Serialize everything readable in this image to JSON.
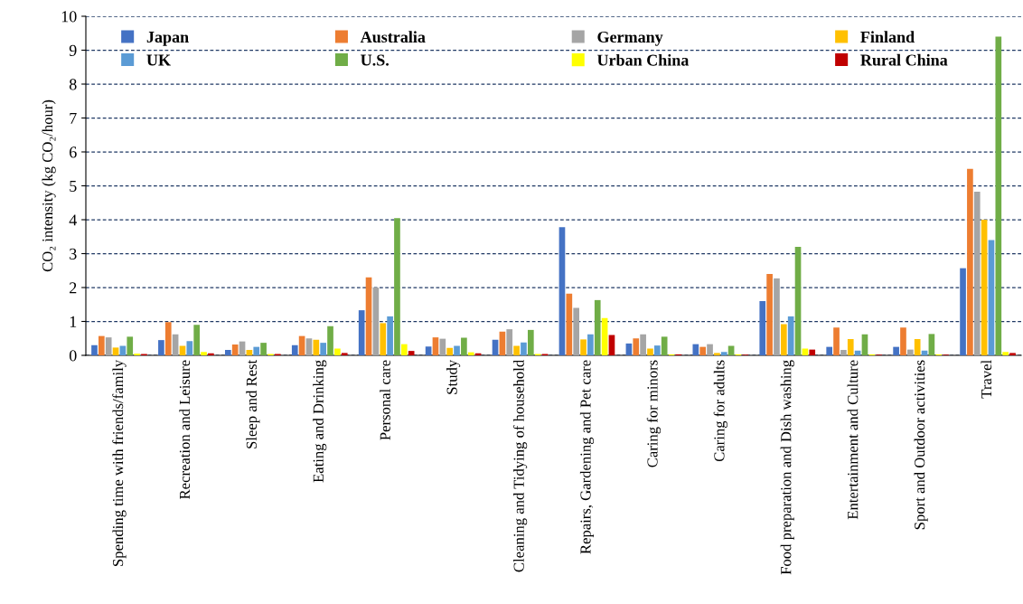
{
  "chart_data": {
    "type": "bar",
    "ylabel": "CO₂ intensity (kg CO₂/hour)",
    "categories": [
      "Spending time with friends/family",
      "Recreation and Leisure",
      "Sleep and Rest",
      "Eating and Drinking",
      "Personal care",
      "Study",
      "Cleaning and Tidying of household",
      "Repairs, Gardening and Pet care",
      "Caring for minors",
      "Caring for adults",
      "Food preparation and Dish washing",
      "Entertainment and Culture",
      "Sport and Outdoor activities",
      "Travel"
    ],
    "series": [
      {
        "name": "Japan",
        "color": "#4472c4",
        "values": [
          0.3,
          0.45,
          0.16,
          0.3,
          1.33,
          0.26,
          0.46,
          3.78,
          0.35,
          0.33,
          1.6,
          0.25,
          0.25,
          2.57
        ]
      },
      {
        "name": "Australia",
        "color": "#ed7d31",
        "values": [
          0.57,
          0.98,
          0.32,
          0.57,
          2.3,
          0.53,
          0.7,
          1.82,
          0.5,
          0.25,
          2.4,
          0.82,
          0.82,
          5.5
        ]
      },
      {
        "name": "Germany",
        "color": "#a5a5a5",
        "values": [
          0.53,
          0.62,
          0.41,
          0.5,
          2.0,
          0.49,
          0.77,
          1.4,
          0.62,
          0.33,
          2.27,
          0.16,
          0.17,
          4.83
        ]
      },
      {
        "name": "Finland",
        "color": "#ffc000",
        "values": [
          0.23,
          0.28,
          0.16,
          0.46,
          0.95,
          0.22,
          0.28,
          0.47,
          0.2,
          0.07,
          0.92,
          0.48,
          0.48,
          4.0
        ]
      },
      {
        "name": "UK",
        "color": "#5b9bd5",
        "values": [
          0.28,
          0.42,
          0.25,
          0.37,
          1.15,
          0.28,
          0.38,
          0.62,
          0.29,
          0.1,
          1.15,
          0.14,
          0.14,
          3.4
        ]
      },
      {
        "name": "U.S.",
        "color": "#70ad47",
        "values": [
          0.55,
          0.9,
          0.37,
          0.86,
          4.05,
          0.52,
          0.75,
          1.63,
          0.55,
          0.28,
          3.2,
          0.62,
          0.63,
          9.4
        ]
      },
      {
        "name": "Urban China",
        "color": "#ffff00",
        "values": [
          0.05,
          0.1,
          0.04,
          0.2,
          0.33,
          0.09,
          0.04,
          1.1,
          0.03,
          0.03,
          0.2,
          0.03,
          0.03,
          0.1
        ]
      },
      {
        "name": "Rural China",
        "color": "#c00000",
        "values": [
          0.04,
          0.06,
          0.04,
          0.07,
          0.13,
          0.06,
          0.04,
          0.6,
          0.03,
          0.02,
          0.17,
          0.02,
          0.02,
          0.07
        ]
      }
    ],
    "ylim": [
      0,
      10
    ],
    "yticks": [
      0,
      1,
      2,
      3,
      4,
      5,
      6,
      7,
      8,
      9,
      10
    ],
    "grid": "y",
    "legend": "top"
  }
}
